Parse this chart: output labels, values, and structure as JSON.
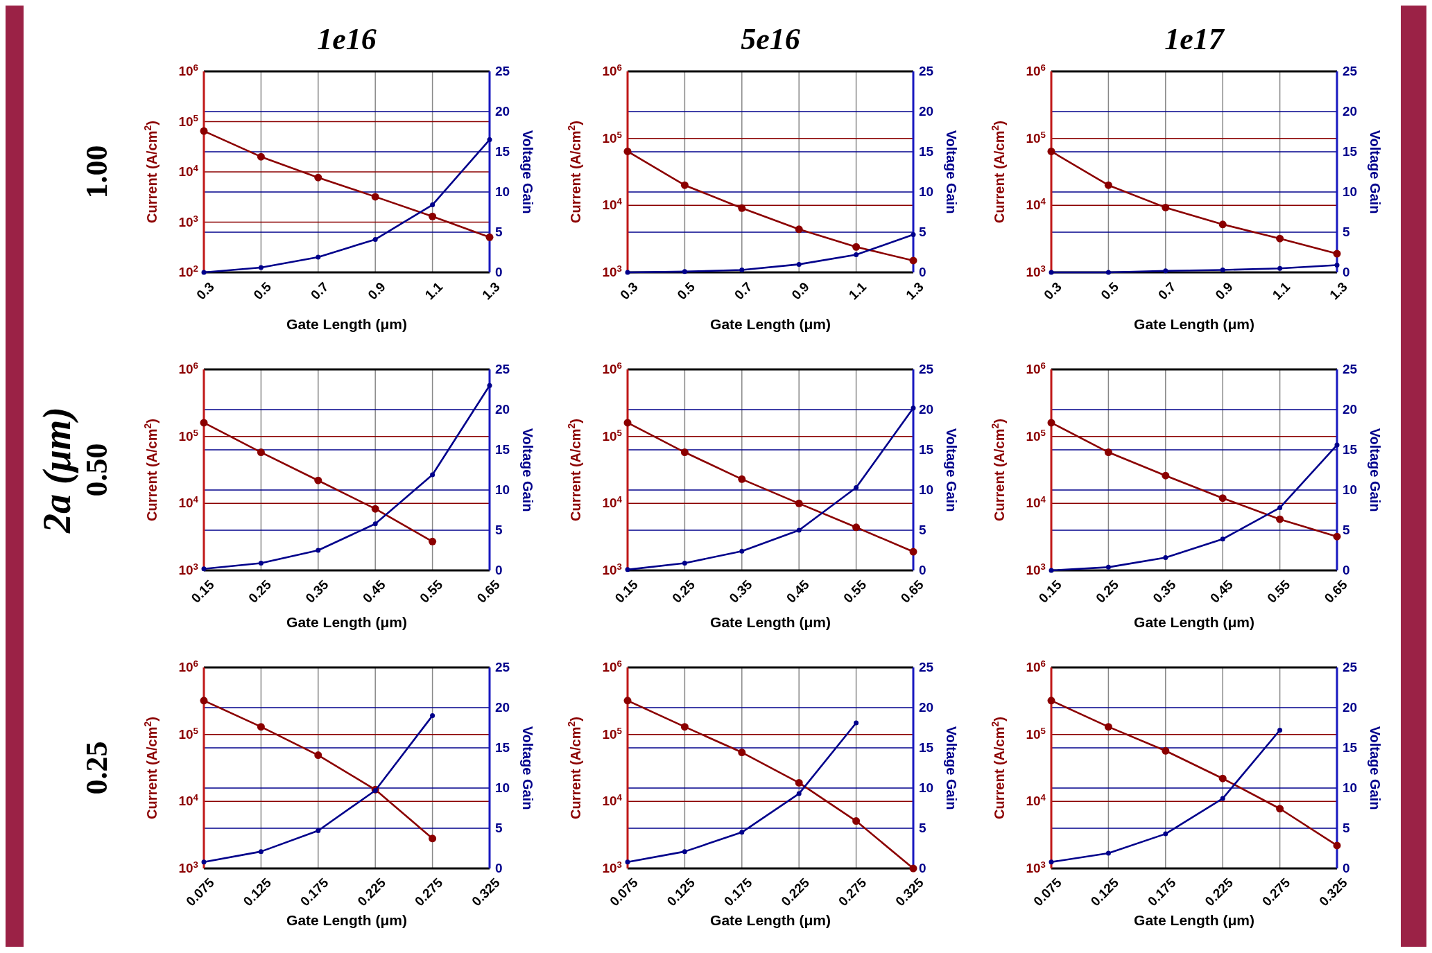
{
  "chart_data": [
    {
      "type": "line",
      "title": "1e16",
      "annotations": [
        "1.00"
      ],
      "xlabel": "Gate Length (μm)",
      "ylabel": "Current (A/cm$^{2}$)",
      "y2label": "Voltage Gain",
      "x": [
        0.3,
        0.5,
        0.7,
        0.9,
        1.1,
        1.3
      ],
      "xlim": [
        0.3,
        1.3
      ],
      "xticks": [
        0.3,
        0.5,
        0.7,
        0.9,
        1.1,
        1.3
      ],
      "log": "y",
      "ylim": [
        100,
        1000000
      ],
      "yticks": [
        {
          "value": 100,
          "label": "10$^{2}$"
        },
        {
          "value": 1000,
          "label": "10$^{3}$"
        },
        {
          "value": 10000,
          "label": "10$^{4}$"
        },
        {
          "value": 100000,
          "label": "10$^{5}$"
        },
        {
          "value": 1000000,
          "label": "10$^{6}$"
        }
      ],
      "y2lim": [
        0,
        25
      ],
      "y2ticks": [
        0,
        5,
        10,
        15,
        20,
        25
      ],
      "grid": true,
      "marker": "circle",
      "series": [
        {
          "color": "#8b0000",
          "values": [
            65000,
            20000,
            7700,
            3200,
            1300,
            500
          ]
        },
        {
          "color": "#00008b",
          "axis": "y2",
          "values": [
            0,
            0.6,
            1.9,
            4.1,
            8.4,
            16.5
          ]
        }
      ]
    },
    {
      "type": "line",
      "title": "5e16",
      "xlabel": "Gate Length (μm)",
      "ylabel": "Current (A/cm$^{2}$)",
      "y2label": "Voltage Gain",
      "x": [
        0.3,
        0.5,
        0.7,
        0.9,
        1.1,
        1.3
      ],
      "xlim": [
        0.3,
        1.3
      ],
      "xticks": [
        0.3,
        0.5,
        0.7,
        0.9,
        1.1,
        1.3
      ],
      "log": "y",
      "ylim": [
        1000,
        1000000
      ],
      "yticks": [
        {
          "value": 1000,
          "label": "10$^{3}$"
        },
        {
          "value": 10000,
          "label": "10$^{4}$"
        },
        {
          "value": 100000,
          "label": "10$^{5}$"
        },
        {
          "value": 1000000,
          "label": "10$^{6}$"
        }
      ],
      "y2lim": [
        0,
        25
      ],
      "y2ticks": [
        0,
        5,
        10,
        15,
        20,
        25
      ],
      "grid": true,
      "marker": "circle",
      "series": [
        {
          "color": "#8b0000",
          "values": [
            64000,
            20000,
            9100,
            4400,
            2400,
            1500
          ]
        },
        {
          "color": "#00008b",
          "axis": "y2",
          "values": [
            0,
            0.1,
            0.3,
            1.0,
            2.2,
            4.7
          ]
        }
      ]
    },
    {
      "type": "line",
      "title": "1e17",
      "xlabel": "Gate Length (μm)",
      "ylabel": "Current (A/cm$^{2}$)",
      "y2label": "Voltage Gain",
      "x": [
        0.3,
        0.5,
        0.7,
        0.9,
        1.1,
        1.3
      ],
      "xlim": [
        0.3,
        1.3
      ],
      "xticks": [
        0.3,
        0.5,
        0.7,
        0.9,
        1.1,
        1.3
      ],
      "log": "y",
      "ylim": [
        1000,
        1000000
      ],
      "yticks": [
        {
          "value": 1000,
          "label": "10$^{3}$"
        },
        {
          "value": 10000,
          "label": "10$^{4}$"
        },
        {
          "value": 100000,
          "label": "10$^{5}$"
        },
        {
          "value": 1000000,
          "label": "10$^{6}$"
        }
      ],
      "y2lim": [
        0,
        25
      ],
      "y2ticks": [
        0,
        5,
        10,
        15,
        20,
        25
      ],
      "grid": true,
      "marker": "circle",
      "series": [
        {
          "color": "#8b0000",
          "values": [
            64000,
            20000,
            9300,
            5200,
            3200,
            1900
          ]
        },
        {
          "color": "#00008b",
          "axis": "y2",
          "values": [
            0,
            0,
            0.2,
            0.3,
            0.5,
            0.9
          ]
        }
      ]
    },
    {
      "type": "line",
      "annotations": [
        "0.50"
      ],
      "xlabel": "Gate Length (μm)",
      "ylabel": "Current (A/cm$^{2}$)",
      "y2label": "Voltage Gain",
      "x": [
        0.15,
        0.25,
        0.35,
        0.45,
        0.55,
        0.65
      ],
      "xlim": [
        0.15,
        0.65
      ],
      "xticks": [
        0.15,
        0.25,
        0.35,
        0.45,
        0.55,
        0.65
      ],
      "log": "y",
      "ylim": [
        1000,
        1000000
      ],
      "yticks": [
        {
          "value": 1000,
          "label": "10$^{3}$"
        },
        {
          "value": 10000,
          "label": "10$^{4}$"
        },
        {
          "value": 100000,
          "label": "10$^{5}$"
        },
        {
          "value": 1000000,
          "label": "10$^{6}$"
        }
      ],
      "y2lim": [
        0,
        25
      ],
      "y2ticks": [
        0,
        5,
        10,
        15,
        20,
        25
      ],
      "grid": true,
      "marker": "circle",
      "series": [
        {
          "color": "#8b0000",
          "values": [
            160000,
            58000,
            22000,
            8300,
            2700,
            null
          ]
        },
        {
          "color": "#00008b",
          "axis": "y2",
          "values": [
            0.2,
            0.9,
            2.5,
            5.8,
            11.9,
            23
          ]
        }
      ]
    },
    {
      "type": "line",
      "xlabel": "Gate Length (μm)",
      "ylabel": "Current (A/cm$^{2}$)",
      "y2label": "Voltage Gain",
      "x": [
        0.15,
        0.25,
        0.35,
        0.45,
        0.55,
        0.65
      ],
      "xlim": [
        0.15,
        0.65
      ],
      "xticks": [
        0.15,
        0.25,
        0.35,
        0.45,
        0.55,
        0.65
      ],
      "log": "y",
      "ylim": [
        1000,
        1000000
      ],
      "yticks": [
        {
          "value": 1000,
          "label": "10$^{3}$"
        },
        {
          "value": 10000,
          "label": "10$^{4}$"
        },
        {
          "value": 100000,
          "label": "10$^{5}$"
        },
        {
          "value": 1000000,
          "label": "10$^{6}$"
        }
      ],
      "y2lim": [
        0,
        25
      ],
      "y2ticks": [
        0,
        5,
        10,
        15,
        20,
        25
      ],
      "grid": true,
      "marker": "circle",
      "series": [
        {
          "color": "#8b0000",
          "values": [
            160000,
            58000,
            23000,
            10000,
            4400,
            1900
          ]
        },
        {
          "color": "#00008b",
          "axis": "y2",
          "values": [
            0.1,
            0.9,
            2.4,
            5.0,
            10.3,
            20.2
          ]
        }
      ]
    },
    {
      "type": "line",
      "xlabel": "Gate Length (μm)",
      "ylabel": "Current (A/cm$^{2}$)",
      "y2label": "Voltage Gain",
      "x": [
        0.15,
        0.25,
        0.35,
        0.45,
        0.55,
        0.65
      ],
      "xlim": [
        0.15,
        0.65
      ],
      "xticks": [
        0.15,
        0.25,
        0.35,
        0.45,
        0.55,
        0.65
      ],
      "log": "y",
      "ylim": [
        1000,
        1000000
      ],
      "yticks": [
        {
          "value": 1000,
          "label": "10$^{3}$"
        },
        {
          "value": 10000,
          "label": "10$^{4}$"
        },
        {
          "value": 100000,
          "label": "10$^{5}$"
        },
        {
          "value": 1000000,
          "label": "10$^{6}$"
        }
      ],
      "y2lim": [
        0,
        25
      ],
      "y2ticks": [
        0,
        5,
        10,
        15,
        20,
        25
      ],
      "grid": true,
      "marker": "circle",
      "series": [
        {
          "color": "#8b0000",
          "values": [
            160000,
            58000,
            26000,
            12000,
            5800,
            3200
          ]
        },
        {
          "color": "#00008b",
          "axis": "y2",
          "values": [
            0,
            0.4,
            1.6,
            3.9,
            7.8,
            15.6
          ]
        }
      ]
    },
    {
      "type": "line",
      "annotations": [
        "0.25"
      ],
      "xlabel": "Gate Length (μm)",
      "ylabel": "Current (A/cm$^{2}$)",
      "y2label": "Voltage Gain",
      "xlim": [
        0.075,
        0.325
      ],
      "xticks": [
        0.075,
        0.125,
        0.175,
        0.225,
        0.275,
        0.325
      ],
      "log": "y",
      "ylim": [
        1000,
        1000000
      ],
      "yticks": [
        {
          "value": 1000,
          "label": "10$^{3}$"
        },
        {
          "value": 10000,
          "label": "10$^{4}$"
        },
        {
          "value": 100000,
          "label": "10$^{5}$"
        },
        {
          "value": 1000000,
          "label": "10$^{6}$"
        }
      ],
      "y2lim": [
        0,
        25
      ],
      "y2ticks": [
        0,
        5,
        10,
        15,
        20,
        25
      ],
      "grid": true,
      "marker": "circle",
      "series": [
        {
          "color": "#8b0000",
          "x": [
            0.075,
            0.125,
            0.175,
            0.225,
            0.275
          ],
          "values": [
            320000,
            130000,
            49000,
            15000,
            2800
          ]
        },
        {
          "color": "#00008b",
          "axis": "y2",
          "x": [
            0.075,
            0.125,
            0.175,
            0.225,
            0.275
          ],
          "values": [
            0.8,
            2.1,
            4.7,
            9.7,
            19
          ]
        }
      ]
    },
    {
      "type": "line",
      "xlabel": "Gate Length (μm)",
      "ylabel": "Current (A/cm$^{2}$)",
      "y2label": "Voltage Gain",
      "x": [
        0.075,
        0.125,
        0.175,
        0.225,
        0.275,
        0.325
      ],
      "xlim": [
        0.075,
        0.325
      ],
      "xticks": [
        0.075,
        0.125,
        0.175,
        0.225,
        0.275,
        0.325
      ],
      "log": "y",
      "ylim": [
        1000,
        1000000
      ],
      "yticks": [
        {
          "value": 1000,
          "label": "10$^{3}$"
        },
        {
          "value": 10000,
          "label": "10$^{4}$"
        },
        {
          "value": 100000,
          "label": "10$^{5}$"
        },
        {
          "value": 1000000,
          "label": "10$^{6}$"
        }
      ],
      "y2lim": [
        0,
        25
      ],
      "y2ticks": [
        0,
        5,
        10,
        15,
        20,
        25
      ],
      "grid": true,
      "marker": "circle",
      "series": [
        {
          "color": "#8b0000",
          "values": [
            320000,
            130000,
            54000,
            19000,
            5100,
            1000
          ]
        },
        {
          "color": "#00008b",
          "axis": "y2",
          "values": [
            0.8,
            2.1,
            4.5,
            9.3,
            18.1,
            null
          ]
        }
      ]
    },
    {
      "type": "line",
      "xlabel": "Gate Length (μm)",
      "ylabel": "Current (A/cm$^{2}$)",
      "y2label": "Voltage Gain",
      "x": [
        0.075,
        0.125,
        0.175,
        0.225,
        0.275,
        0.325
      ],
      "xlim": [
        0.075,
        0.325
      ],
      "xticks": [
        0.075,
        0.125,
        0.175,
        0.225,
        0.275,
        0.325
      ],
      "log": "y",
      "ylim": [
        1000,
        1000000
      ],
      "yticks": [
        {
          "value": 1000,
          "label": "10$^{3}$"
        },
        {
          "value": 10000,
          "label": "10$^{4}$"
        },
        {
          "value": 100000,
          "label": "10$^{5}$"
        },
        {
          "value": 1000000,
          "label": "10$^{6}$"
        }
      ],
      "y2lim": [
        0,
        25
      ],
      "y2ticks": [
        0,
        5,
        10,
        15,
        20,
        25
      ],
      "grid": true,
      "marker": "circle",
      "series": [
        {
          "color": "#8b0000",
          "values": [
            320000,
            130000,
            57000,
            22000,
            7800,
            2200
          ]
        },
        {
          "color": "#00008b",
          "axis": "y2",
          "values": [
            0.8,
            1.9,
            4.3,
            8.7,
            17.2,
            null
          ]
        }
      ]
    },
    {
      "type": "other",
      "title": "2a (μm)"
    }
  ]
}
